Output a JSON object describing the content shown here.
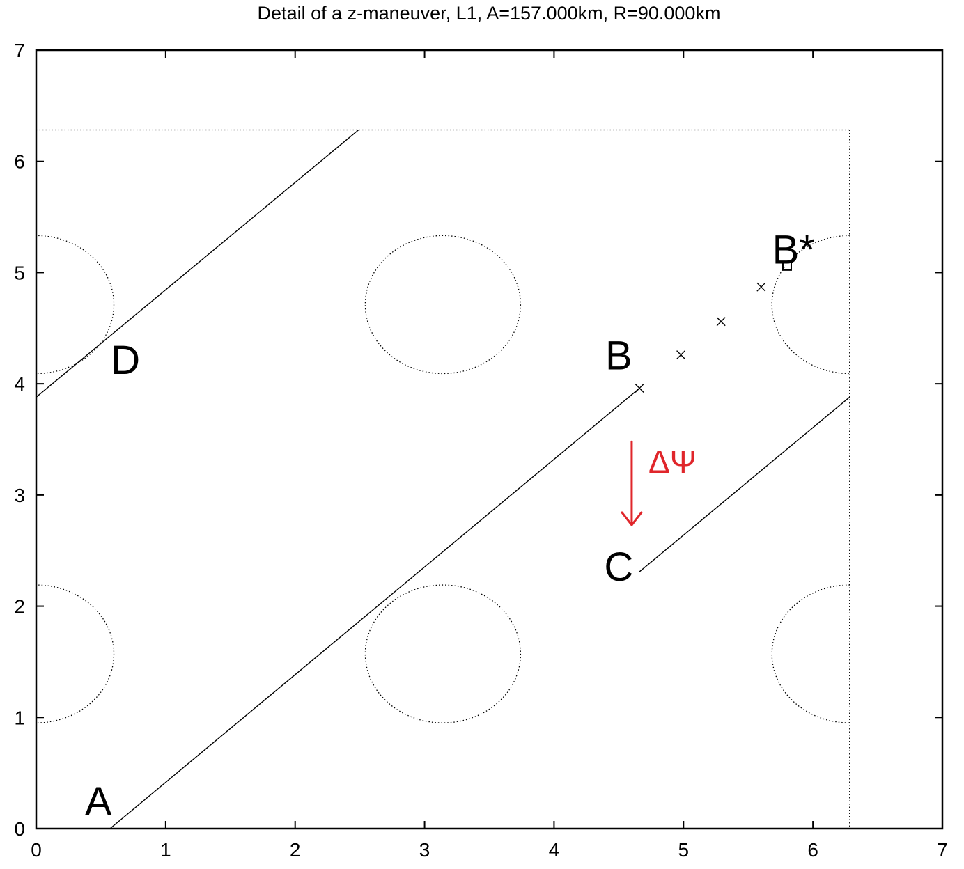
{
  "chart_data": {
    "type": "line",
    "title": "Detail of a z-maneuver, L1, A=157.000km, R=90.000km",
    "xlabel": "",
    "ylabel": "",
    "xlim": [
      0,
      7
    ],
    "ylim": [
      0,
      7
    ],
    "x_ticks": [
      0,
      1,
      2,
      3,
      4,
      5,
      6,
      7
    ],
    "y_ticks": [
      0,
      1,
      2,
      3,
      4,
      5,
      6,
      7
    ],
    "grid": false,
    "legend": "none",
    "colors": {
      "axes": "#000000",
      "annotation": "#e0262b"
    },
    "boundary": {
      "x_max": 6.283,
      "y_max": 6.283,
      "style": "dotted"
    },
    "regions": [
      {
        "cx": 0,
        "cy": 4.712,
        "rx": 0.6,
        "ry": 0.62
      },
      {
        "cx": 3.1416,
        "cy": 4.712,
        "rx": 0.6,
        "ry": 0.62
      },
      {
        "cx": 6.283,
        "cy": 4.712,
        "rx": 0.6,
        "ry": 0.62
      },
      {
        "cx": 0,
        "cy": 1.571,
        "rx": 0.6,
        "ry": 0.62
      },
      {
        "cx": 3.1416,
        "cy": 1.571,
        "rx": 0.6,
        "ry": 0.62
      },
      {
        "cx": 6.283,
        "cy": 1.571,
        "rx": 0.6,
        "ry": 0.62
      }
    ],
    "series": [
      {
        "x": [
          0.57,
          4.66
        ],
        "y": [
          0.0,
          3.96
        ]
      },
      {
        "x": [
          4.66,
          6.283
        ],
        "y": [
          2.31,
          3.88
        ]
      },
      {
        "x": [
          0.0,
          2.49
        ],
        "y": [
          3.88,
          6.283
        ]
      }
    ],
    "markers": [
      {
        "x": 4.66,
        "y": 3.96,
        "shape": "cross"
      },
      {
        "x": 4.98,
        "y": 4.26,
        "shape": "cross"
      },
      {
        "x": 5.29,
        "y": 4.56,
        "shape": "cross"
      },
      {
        "x": 5.6,
        "y": 4.87,
        "shape": "cross"
      },
      {
        "x": 5.8,
        "y": 5.06,
        "shape": "square"
      }
    ],
    "point_labels": [
      {
        "text": "A",
        "x": 0.48,
        "y": 0.12
      },
      {
        "text": "B",
        "x": 4.5,
        "y": 4.13
      },
      {
        "text": "B*",
        "x": 5.85,
        "y": 5.08
      },
      {
        "text": "C",
        "x": 4.5,
        "y": 2.23
      },
      {
        "text": "D",
        "x": 0.69,
        "y": 4.09
      }
    ],
    "annotation": {
      "text": "ΔΨ",
      "arrow": {
        "x": 4.6,
        "y_from": 3.48,
        "y_to": 2.73
      }
    }
  }
}
